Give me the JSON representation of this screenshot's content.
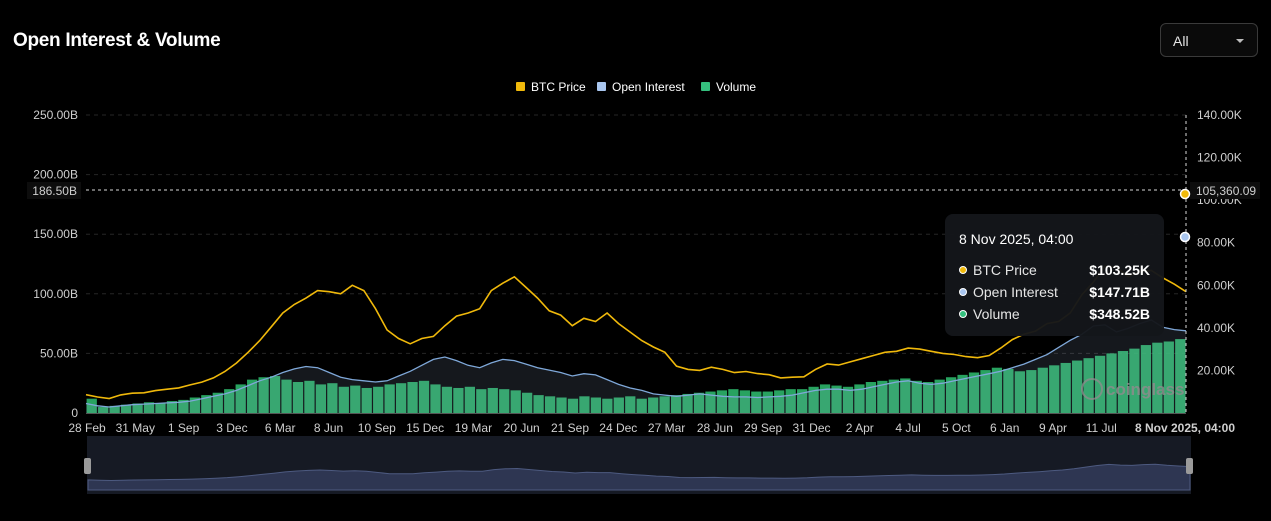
{
  "header": {
    "title": "Open Interest & Volume",
    "range_select": "All"
  },
  "chart_data": {
    "type": "line",
    "legend": [
      {
        "name": "BTC Price",
        "color": "#f0b90b"
      },
      {
        "name": "Open Interest",
        "color": "#a9c6ef"
      },
      {
        "name": "Volume",
        "color": "#35c07e"
      }
    ],
    "legend_position": "top-center",
    "grid": true,
    "y_left": {
      "ticks": [
        "250.00B",
        "200.00B",
        "150.00B",
        "100.00B",
        "50.00B",
        "0"
      ],
      "range": [
        0,
        250
      ]
    },
    "y_right": {
      "ticks": [
        "140.00K",
        "120.00K",
        "100.00K",
        "80.00K",
        "60.00K",
        "40.00K",
        "20.00K"
      ],
      "range": [
        0,
        140
      ]
    },
    "x_ticks": [
      "28 Feb",
      "31 May",
      "1 Sep",
      "3 Dec",
      "6 Mar",
      "8 Jun",
      "10 Sep",
      "15 Dec",
      "19 Mar",
      "20 Jun",
      "21 Sep",
      "24 Dec",
      "27 Mar",
      "28 Jun",
      "29 Sep",
      "31 Dec",
      "2 Apr",
      "4 Jul",
      "5 Oct",
      "6 Jan",
      "9 Apr",
      "11 Jul"
    ],
    "crosshair": {
      "left_label": "186.50B",
      "right_label": "105,360.09",
      "x_label": "8 Nov 2025, 04:00"
    },
    "btc_price_k": [
      8.6,
      7.5,
      6.8,
      8.5,
      9.3,
      9.5,
      10.5,
      11.2,
      11.8,
      13.2,
      14.5,
      16.5,
      19.5,
      23.5,
      28.5,
      34.0,
      40.5,
      47.0,
      51.0,
      54.0,
      57.5,
      57.0,
      56.0,
      60.0,
      57.5,
      49.0,
      39.0,
      35.0,
      32.5,
      35.0,
      36.0,
      41.0,
      45.5,
      47.0,
      49.0,
      57.5,
      61.0,
      64.0,
      59.0,
      54.0,
      48.0,
      46.0,
      41.0,
      44.5,
      43.0,
      47.0,
      42.0,
      38.0,
      34.0,
      31.0,
      28.5,
      22.0,
      20.5,
      20.0,
      21.5,
      20.5,
      19.0,
      19.5,
      18.5,
      18.0,
      16.5,
      16.8,
      17.0,
      20.5,
      23.0,
      22.5,
      24.0,
      25.5,
      27.0,
      28.5,
      29.0,
      30.5,
      30.0,
      29.0,
      28.0,
      27.5,
      26.5,
      26.0,
      27.0,
      30.5,
      34.5,
      37.0,
      38.5,
      42.0,
      43.0,
      47.0,
      55.5,
      61.5,
      69.0,
      68.5,
      64.0,
      66.5,
      67.0,
      63.5,
      60.5,
      57.0
    ],
    "open_interest_b": [
      8,
      6,
      5,
      6,
      7,
      7.5,
      8,
      8.5,
      9,
      10,
      12,
      14,
      16,
      19,
      23,
      27,
      30,
      34,
      37,
      39,
      38,
      34,
      30,
      28,
      27,
      26,
      27,
      31,
      35,
      40,
      45,
      47,
      44,
      40,
      38,
      42,
      45,
      44,
      41,
      38,
      36,
      34,
      31,
      33,
      32,
      28,
      24,
      21,
      19,
      16,
      15,
      14,
      15,
      16,
      15,
      14,
      13.5,
      13.5,
      13,
      13.5,
      14,
      15,
      17,
      19,
      20,
      20,
      19,
      20,
      22,
      24,
      26,
      27,
      25,
      24,
      25,
      27,
      29,
      31,
      33,
      35,
      38,
      41,
      45,
      49,
      55,
      61,
      66,
      73,
      74,
      68,
      71,
      75,
      78,
      72,
      70,
      69
    ],
    "volume_b": [
      12,
      5,
      6,
      7,
      8,
      9,
      8,
      10,
      11,
      13,
      15,
      17,
      20,
      24,
      28,
      30,
      31,
      28,
      26,
      27,
      24,
      25,
      22,
      23,
      21,
      22,
      24,
      25,
      26,
      27,
      24,
      22,
      21,
      22,
      20,
      21,
      20,
      19,
      17,
      15,
      14,
      13,
      12,
      14,
      13,
      12,
      13,
      14,
      12,
      13,
      14,
      15,
      16,
      17,
      18,
      19,
      20,
      19,
      18,
      18,
      19,
      20,
      20,
      22,
      24,
      23,
      22,
      24,
      26,
      27,
      28,
      29,
      27,
      26,
      28,
      30,
      32,
      34,
      36,
      38,
      37,
      35,
      36,
      38,
      40,
      42,
      44,
      46,
      48,
      50,
      52,
      54,
      57,
      59,
      60,
      62
    ],
    "tooltip": {
      "date": "8 Nov 2025, 04:00",
      "rows": [
        {
          "label": "BTC Price",
          "value": "$103.25K",
          "color": "#f0b90b"
        },
        {
          "label": "Open Interest",
          "value": "$147.71B",
          "color": "#a9c6ef"
        },
        {
          "label": "Volume",
          "value": "$348.52B",
          "color": "#35c07e"
        }
      ]
    },
    "watermark": "coinglass"
  }
}
